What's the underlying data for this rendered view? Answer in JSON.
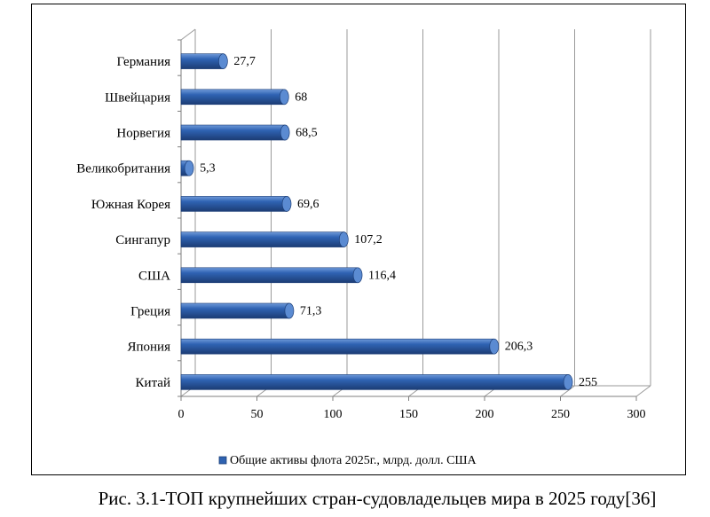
{
  "caption": "Рис. 3.1-ТОП  крупнейших стран-судовладельцев мира в 2025 году[36]",
  "colors": {
    "bar_front": "#2e62b0",
    "bar_top": "#5b8bd2",
    "bar_dark": "#1d3f78",
    "grid": "#9a9a9a",
    "axis": "#7f7f7f"
  },
  "chart_data": {
    "type": "bar",
    "orientation": "horizontal",
    "style": "3d-cylinder",
    "categories": [
      "Германия",
      "Швейцария",
      "Норвегия",
      "Великобритания",
      "Южная Корея",
      "Сингапур",
      "США",
      "Греция",
      "Япония",
      "Китай"
    ],
    "series": [
      {
        "name": "Общие активы флота 2025г., млрд. долл. США",
        "values": [
          27.7,
          68,
          68.5,
          5.3,
          69.6,
          107.2,
          116.4,
          71.3,
          206.3,
          255
        ],
        "value_labels": [
          "27,7",
          "68",
          "68,5",
          "5,3",
          "69,6",
          "107,2",
          "116,4",
          "71,3",
          "206,3",
          "255"
        ]
      }
    ],
    "xlim": [
      0,
      300
    ],
    "x_ticks": [
      0,
      50,
      100,
      150,
      200,
      250,
      300
    ],
    "x_tick_labels": [
      "0",
      "50",
      "100",
      "150",
      "200",
      "250",
      "300"
    ],
    "grid": true,
    "legend_position": "bottom"
  }
}
